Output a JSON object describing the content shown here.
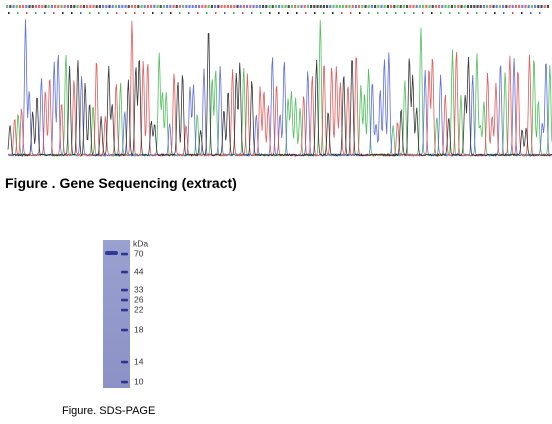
{
  "figures": [
    {
      "caption": "Figure . Gene Sequencing (extract)"
    },
    {
      "caption": "Figure. SDS-PAGE",
      "marker_unit": "kDa",
      "marker_labels": [
        "70",
        "44",
        "33",
        "26",
        "22",
        "18",
        "14",
        "10"
      ]
    }
  ]
}
